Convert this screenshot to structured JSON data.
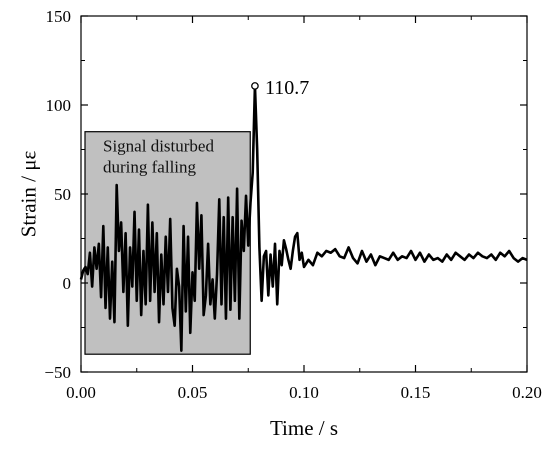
{
  "chart_data": {
    "type": "line",
    "xlabel": "Time / s",
    "ylabel": "Strain / με",
    "xlim": [
      0,
      0.2
    ],
    "ylim": [
      -50,
      150
    ],
    "x_ticks": [
      "0.00",
      "0.05",
      "0.10",
      "0.15",
      "0.20"
    ],
    "y_ticks": [
      "−50",
      "0",
      "50",
      "100",
      "150"
    ],
    "grid": false,
    "legend": "none",
    "series_color": "#000000",
    "box_fill": "#c0c0c0",
    "region": {
      "label_lines": [
        "Signal disturbed",
        "during falling"
      ],
      "x_range": [
        0.0,
        0.075
      ],
      "y_range": [
        -40,
        85
      ]
    },
    "peak": {
      "x": 0.078,
      "y": 110.7,
      "label": "110.7"
    },
    "series": [
      {
        "x": [
          0.0,
          0.001,
          0.002,
          0.003,
          0.004,
          0.005,
          0.006,
          0.007,
          0.008,
          0.009,
          0.01,
          0.011,
          0.012,
          0.013,
          0.014,
          0.015,
          0.016,
          0.017,
          0.018,
          0.019,
          0.02,
          0.021,
          0.022,
          0.023,
          0.024,
          0.025,
          0.026,
          0.027,
          0.028,
          0.029,
          0.03,
          0.031,
          0.032,
          0.033,
          0.034,
          0.035,
          0.036,
          0.037,
          0.038,
          0.039,
          0.04,
          0.041,
          0.042,
          0.043,
          0.044,
          0.045,
          0.046,
          0.047,
          0.048,
          0.049,
          0.05,
          0.051,
          0.052,
          0.053,
          0.054,
          0.055,
          0.056,
          0.057,
          0.058,
          0.059,
          0.06,
          0.061,
          0.062,
          0.063,
          0.064,
          0.065,
          0.066,
          0.067,
          0.068,
          0.069,
          0.07,
          0.071,
          0.072,
          0.073,
          0.074,
          0.075,
          0.076,
          0.077,
          0.078,
          0.079,
          0.08,
          0.081,
          0.082,
          0.083,
          0.084,
          0.085,
          0.086,
          0.087,
          0.088,
          0.089,
          0.09,
          0.091,
          0.092,
          0.093,
          0.094,
          0.095,
          0.096,
          0.097,
          0.098,
          0.099,
          0.1,
          0.102,
          0.104,
          0.106,
          0.108,
          0.11,
          0.112,
          0.114,
          0.116,
          0.118,
          0.12,
          0.122,
          0.124,
          0.126,
          0.128,
          0.13,
          0.132,
          0.134,
          0.136,
          0.138,
          0.14,
          0.142,
          0.144,
          0.146,
          0.148,
          0.15,
          0.152,
          0.154,
          0.156,
          0.158,
          0.16,
          0.162,
          0.164,
          0.166,
          0.168,
          0.17,
          0.172,
          0.174,
          0.176,
          0.178,
          0.18,
          0.182,
          0.184,
          0.186,
          0.188,
          0.19,
          0.192,
          0.194,
          0.196,
          0.198,
          0.2
        ],
        "y": [
          2,
          7,
          9,
          5,
          17,
          -2,
          20,
          8,
          22,
          -8,
          32,
          -14,
          20,
          -20,
          12,
          -22,
          55,
          18,
          34,
          -5,
          28,
          -24,
          20,
          -2,
          40,
          -10,
          30,
          -18,
          18,
          -12,
          44,
          -10,
          34,
          -5,
          28,
          -22,
          16,
          -12,
          26,
          -5,
          36,
          -14,
          -24,
          8,
          -2,
          -38,
          32,
          -16,
          26,
          -28,
          6,
          -10,
          45,
          8,
          38,
          -18,
          -7,
          22,
          -12,
          2,
          -20,
          5,
          47,
          -12,
          37,
          -20,
          48,
          -15,
          37,
          -10,
          53,
          -20,
          35,
          18,
          49,
          21,
          45,
          62,
          110.7,
          75,
          20,
          -10,
          15,
          18,
          -7,
          16,
          -2,
          22,
          -12,
          18,
          10,
          24,
          19,
          13,
          8,
          18,
          26,
          28,
          13,
          17,
          9,
          13,
          10,
          17,
          15,
          18,
          17,
          19,
          15,
          14,
          20,
          14,
          11,
          18,
          12,
          16,
          10,
          15,
          14,
          13,
          17,
          13,
          15,
          14,
          18,
          13,
          17,
          12,
          16,
          13,
          14,
          12,
          16,
          13,
          17,
          15,
          13,
          16,
          14,
          17,
          15,
          14,
          16,
          13,
          17,
          15,
          18,
          14,
          12,
          14,
          13
        ]
      }
    ]
  }
}
